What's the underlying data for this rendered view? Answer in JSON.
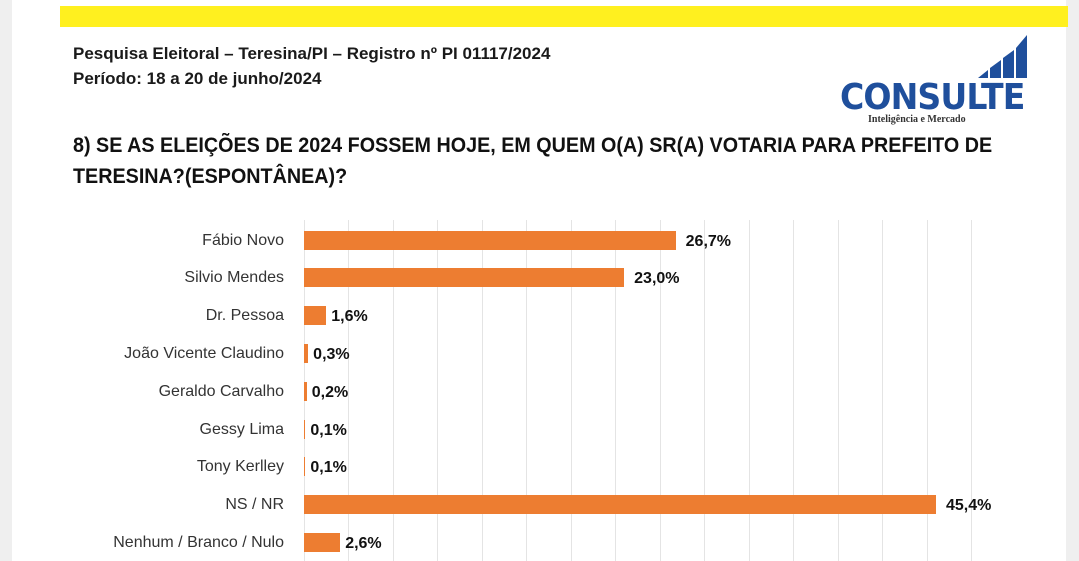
{
  "header": {
    "survey_line": "Pesquisa Eleitoral – Teresina/PI – Registro nº PI 01117/2024",
    "period_line": "Período: 18 a 20 de junho/2024"
  },
  "logo": {
    "name": "CONSULTE",
    "tagline": "Inteligência e Mercado",
    "icon": "bar-chart-stairs-icon",
    "color": "#1f4f9c"
  },
  "question": "8) SE AS ELEIÇÕES DE 2024 FOSSEM HOJE, EM QUEM O(A) SR(A) VOTARIA PARA PREFEITO DE TERESINA?(ESPONTÂNEA)?",
  "colors": {
    "top_bar": "#fff01f",
    "bar": "#ed7d31"
  },
  "chart_data": {
    "type": "bar",
    "orientation": "horizontal",
    "title": "8) SE AS ELEIÇÕES DE 2024 FOSSEM HOJE, EM QUEM O(A) SR(A) VOTARIA PARA PREFEITO DE TERESINA?(ESPONTÂNEA)?",
    "categories": [
      "Fábio Novo",
      "Silvio Mendes",
      "Dr. Pessoa",
      "João Vicente Claudino",
      "Geraldo Carvalho",
      "Gessy Lima",
      "Tony Kerlley",
      "NS / NR",
      "Nenhum / Branco / Nulo"
    ],
    "values": [
      26.7,
      23.0,
      1.6,
      0.3,
      0.2,
      0.1,
      0.1,
      45.4,
      2.6
    ],
    "value_labels": [
      "26,7%",
      "23,0%",
      "1,6%",
      "0,3%",
      "0,2%",
      "0,1%",
      "0,1%",
      "45,4%",
      "2,6%"
    ],
    "xlabel": "",
    "ylabel": "",
    "xlim": [
      0,
      50
    ],
    "grid": true,
    "legend": "none"
  }
}
